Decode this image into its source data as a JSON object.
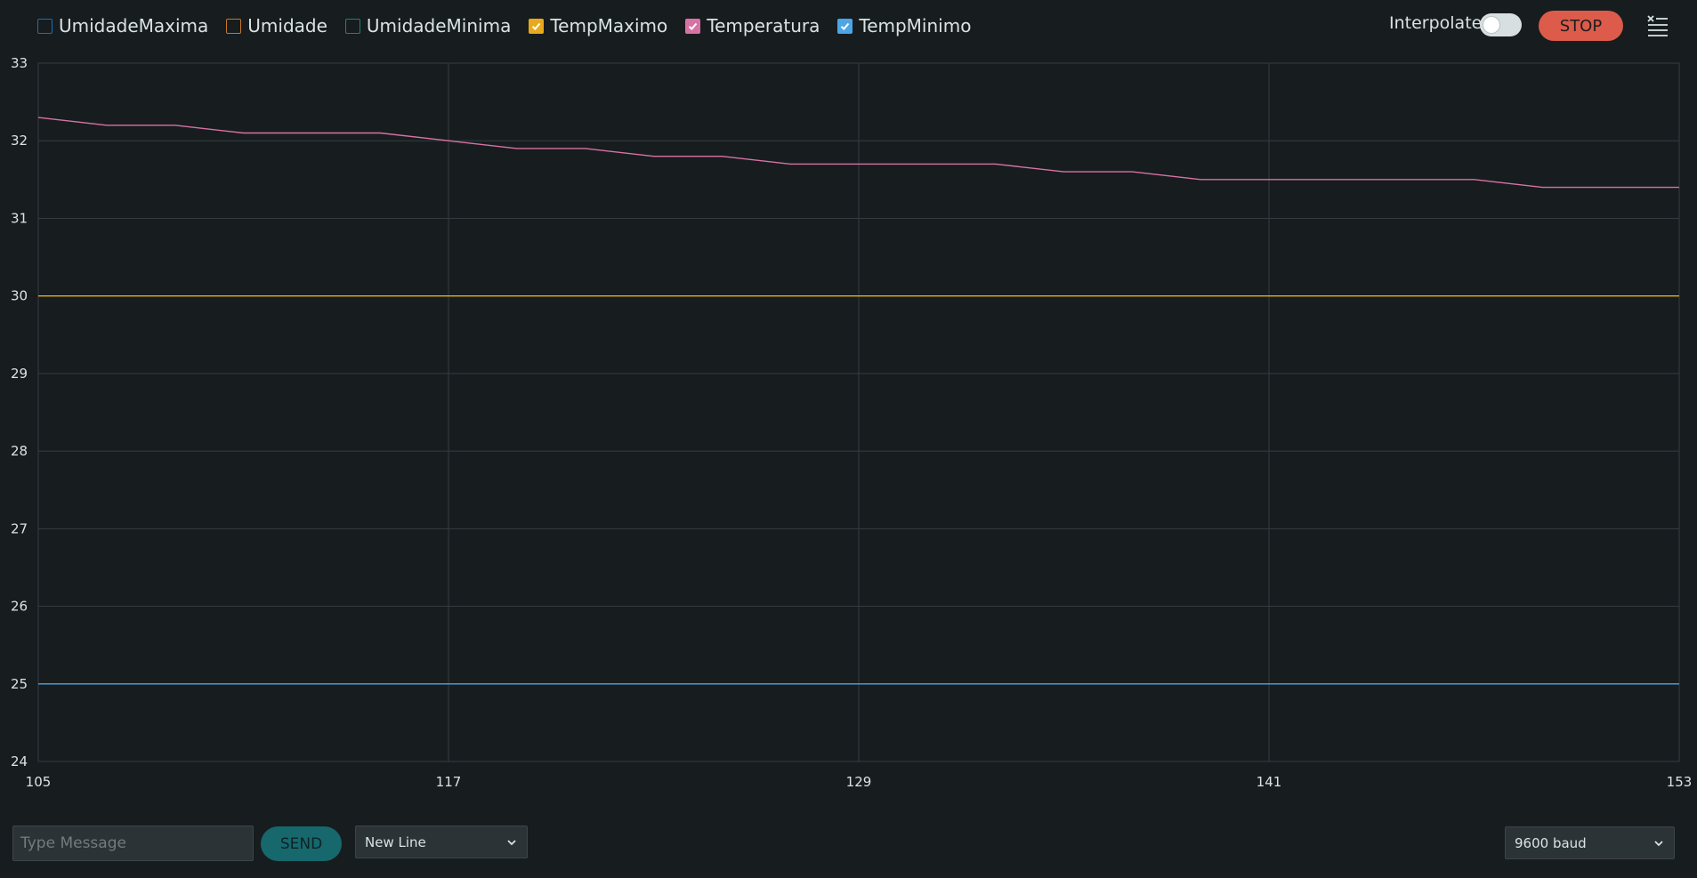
{
  "legend": [
    {
      "label": "UmidadeMaxima",
      "color": "#1e6fb0",
      "checked": false
    },
    {
      "label": "Umidade",
      "color": "#c8772c",
      "checked": false
    },
    {
      "label": "UmidadeMinima",
      "color": "#138a6d",
      "checked": false
    },
    {
      "label": "TempMaximo",
      "color": "#e8a91c",
      "checked": true
    },
    {
      "label": "Temperatura",
      "color": "#d872a5",
      "checked": true
    },
    {
      "label": "TempMinimo",
      "color": "#4aa6e6",
      "checked": true
    }
  ],
  "controls": {
    "interpolate_label": "Interpolate",
    "interpolate_on": false,
    "stop_label": "STOP",
    "clear_icon": "clear-list-icon"
  },
  "footer": {
    "message_placeholder": "Type Message",
    "message_value": "",
    "send_label": "SEND",
    "line_ending": "New Line",
    "baud": "9600 baud"
  },
  "chart_data": {
    "type": "line",
    "x_ticks": [
      "105",
      "117",
      "129",
      "141",
      "153"
    ],
    "y_ticks": [
      "24",
      "25",
      "26",
      "27",
      "28",
      "29",
      "30",
      "31",
      "32",
      "33"
    ],
    "xlim": [
      105,
      153
    ],
    "ylim": [
      24,
      33
    ],
    "grid": true,
    "series": [
      {
        "name": "TempMaximo",
        "color": "#e8a91c",
        "x": [
          105,
          153
        ],
        "y": [
          30,
          30
        ]
      },
      {
        "name": "Temperatura",
        "color": "#d872a5",
        "x": [
          105,
          107,
          109,
          111,
          113,
          115,
          117,
          119,
          121,
          123,
          125,
          127,
          129,
          131,
          133,
          135,
          137,
          139,
          141,
          143,
          145,
          147,
          149,
          151,
          153
        ],
        "y": [
          32.3,
          32.2,
          32.2,
          32.1,
          32.1,
          32.1,
          32.0,
          31.9,
          31.9,
          31.8,
          31.8,
          31.7,
          31.7,
          31.7,
          31.7,
          31.6,
          31.6,
          31.5,
          31.5,
          31.5,
          31.5,
          31.5,
          31.4,
          31.4,
          31.4
        ]
      },
      {
        "name": "TempMinimo",
        "color": "#4aa6e6",
        "x": [
          105,
          153
        ],
        "y": [
          25,
          25
        ]
      }
    ]
  }
}
